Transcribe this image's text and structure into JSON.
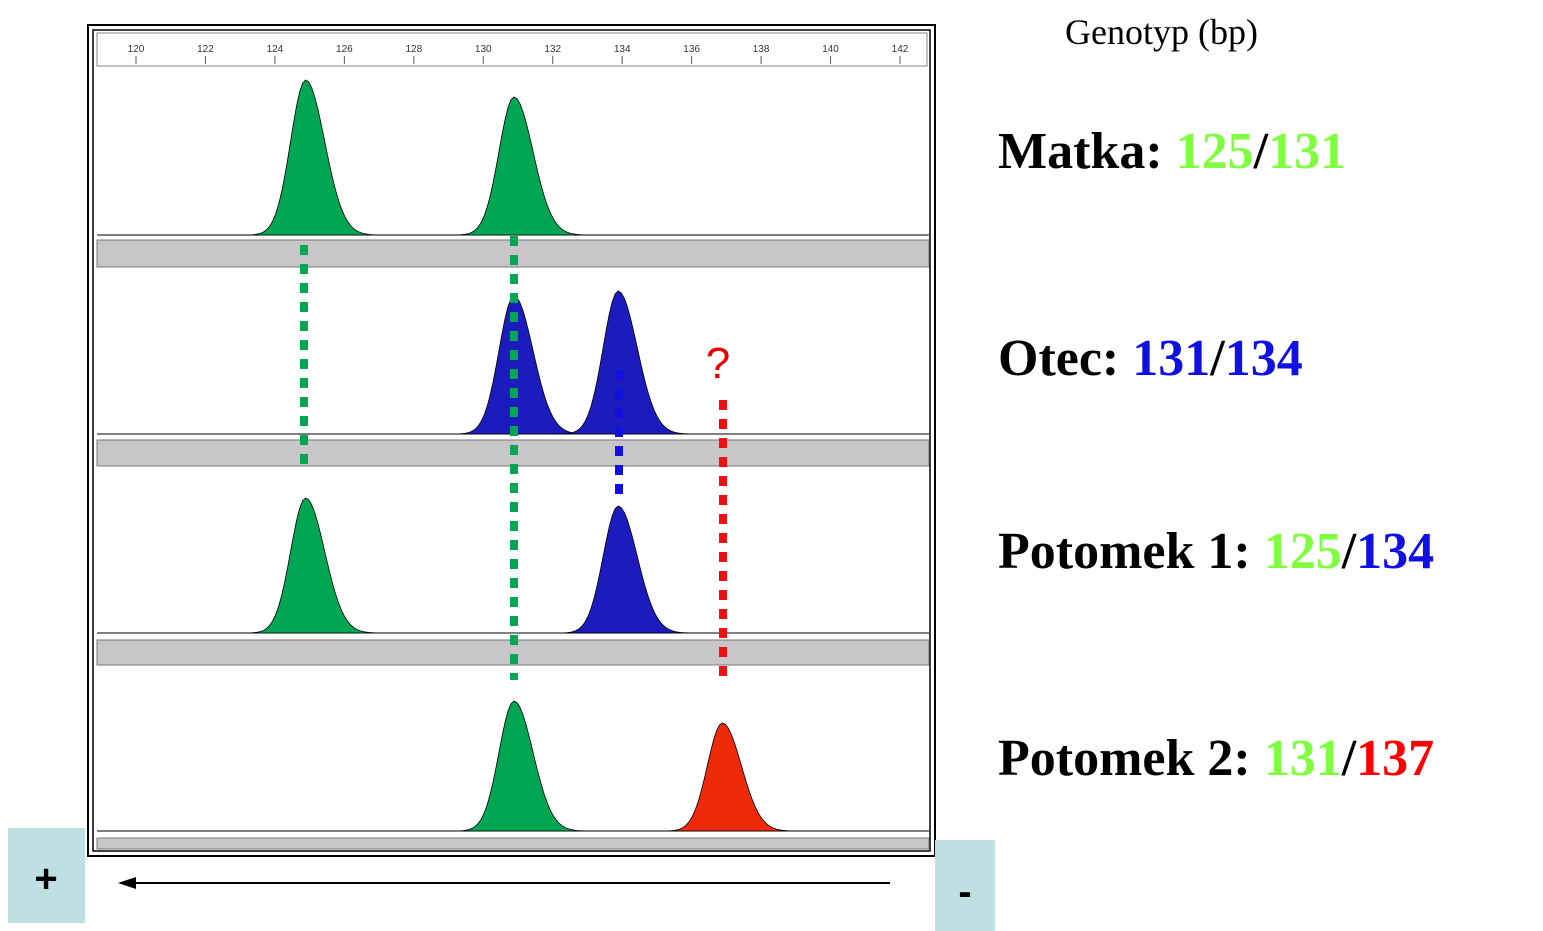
{
  "ruler": {
    "ticks": [
      120,
      122,
      124,
      126,
      128,
      130,
      132,
      134,
      136,
      138,
      140,
      142
    ],
    "min": 120,
    "max": 142
  },
  "heading": "Genotyp (bp)",
  "separator": "/",
  "question": "?",
  "plus": "+",
  "minus": "-",
  "rows": [
    {
      "label": "Matka:",
      "alleles": [
        {
          "value": 125,
          "color": "#80ff40",
          "peak_color": "#00a651"
        },
        {
          "value": 131,
          "color": "#80ff40",
          "peak_color": "#00a651"
        }
      ]
    },
    {
      "label": "Otec:",
      "alleles": [
        {
          "value": 131,
          "color": "#1010e0",
          "peak_color": "#1c1cbe"
        },
        {
          "value": 134,
          "color": "#1010e0",
          "peak_color": "#1c1cbe"
        }
      ]
    },
    {
      "label": "Potomek 1:",
      "alleles": [
        {
          "value": 125,
          "color": "#80ff40",
          "peak_color": "#00a651"
        },
        {
          "value": 134,
          "color": "#1010e0",
          "peak_color": "#1c1cbe"
        }
      ]
    },
    {
      "label": "Potomek 2:",
      "alleles": [
        {
          "value": 131,
          "color": "#80ff40",
          "peak_color": "#00a651"
        },
        {
          "value": 137,
          "color": "#ff0000",
          "peak_color": "#ee2a0b"
        }
      ]
    }
  ]
}
